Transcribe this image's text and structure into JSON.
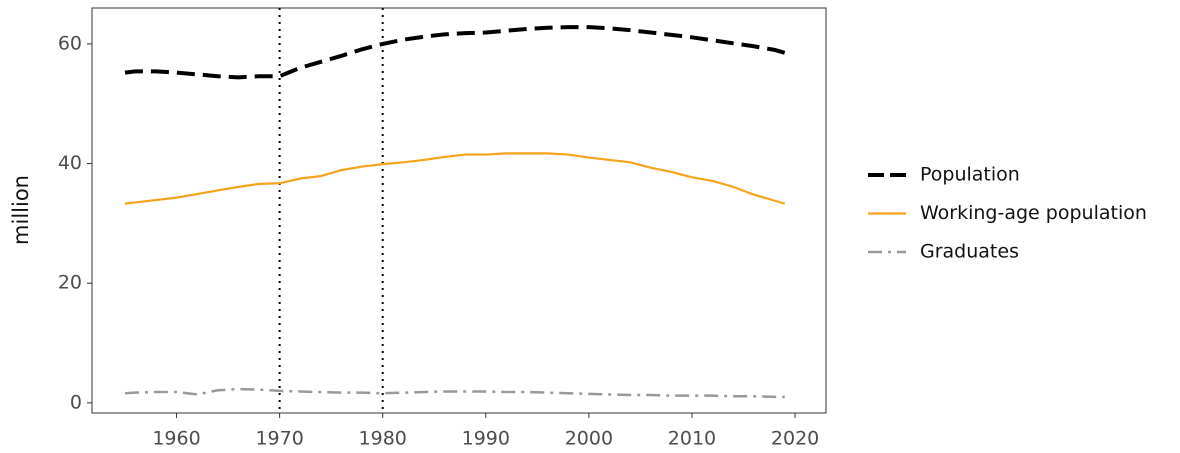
{
  "chart_data": {
    "type": "line",
    "y_label": "million",
    "x": [
      1955,
      1956,
      1958,
      1960,
      1962,
      1964,
      1966,
      1968,
      1970,
      1972,
      1974,
      1976,
      1978,
      1980,
      1982,
      1984,
      1986,
      1988,
      1990,
      1992,
      1994,
      1996,
      1998,
      2000,
      2002,
      2004,
      2006,
      2008,
      2010,
      2012,
      2014,
      2016,
      2018,
      2019
    ],
    "series": [
      {
        "name": "Population",
        "color": "#000000",
        "linestyle": "dashed",
        "width": 4,
        "values": [
          55.2,
          55.4,
          55.4,
          55.2,
          54.9,
          54.6,
          54.4,
          54.6,
          54.6,
          56.0,
          57.0,
          58.0,
          59.1,
          60.0,
          60.7,
          61.2,
          61.6,
          61.8,
          61.9,
          62.2,
          62.5,
          62.7,
          62.8,
          62.8,
          62.6,
          62.3,
          61.9,
          61.5,
          61.1,
          60.6,
          60.1,
          59.6,
          59.0,
          58.5
        ]
      },
      {
        "name": "Working-age population",
        "color": "#f5a31a",
        "linestyle": "solid",
        "width": 2.2,
        "values": [
          33.3,
          33.5,
          33.9,
          34.3,
          34.9,
          35.5,
          36.1,
          36.6,
          36.7,
          37.5,
          37.9,
          38.9,
          39.5,
          39.9,
          40.2,
          40.6,
          41.1,
          41.5,
          41.5,
          41.7,
          41.7,
          41.7,
          41.5,
          41.0,
          40.6,
          40.2,
          39.3,
          38.6,
          37.7,
          37.1,
          36.1,
          34.8,
          33.8,
          33.3
        ]
      },
      {
        "name": "Graduates",
        "color": "#999999",
        "linestyle": "dashdot",
        "width": 2.5,
        "values": [
          1.6,
          1.7,
          1.8,
          1.8,
          1.4,
          2.1,
          2.3,
          2.2,
          2.0,
          1.9,
          1.8,
          1.7,
          1.7,
          1.6,
          1.7,
          1.8,
          1.9,
          1.9,
          1.9,
          1.8,
          1.8,
          1.7,
          1.6,
          1.5,
          1.4,
          1.3,
          1.3,
          1.2,
          1.2,
          1.2,
          1.1,
          1.1,
          1.0,
          1.0
        ]
      }
    ],
    "vlines": [
      1970,
      1980
    ],
    "xlim": [
      1951.8,
      2023.0
    ],
    "xticks": [
      1960,
      1970,
      1980,
      1990,
      2000,
      2010,
      2020
    ],
    "ylim": [
      -1.7,
      66.0
    ],
    "yticks": [
      0,
      20,
      40,
      60
    ],
    "grid": false,
    "legend": "right"
  }
}
